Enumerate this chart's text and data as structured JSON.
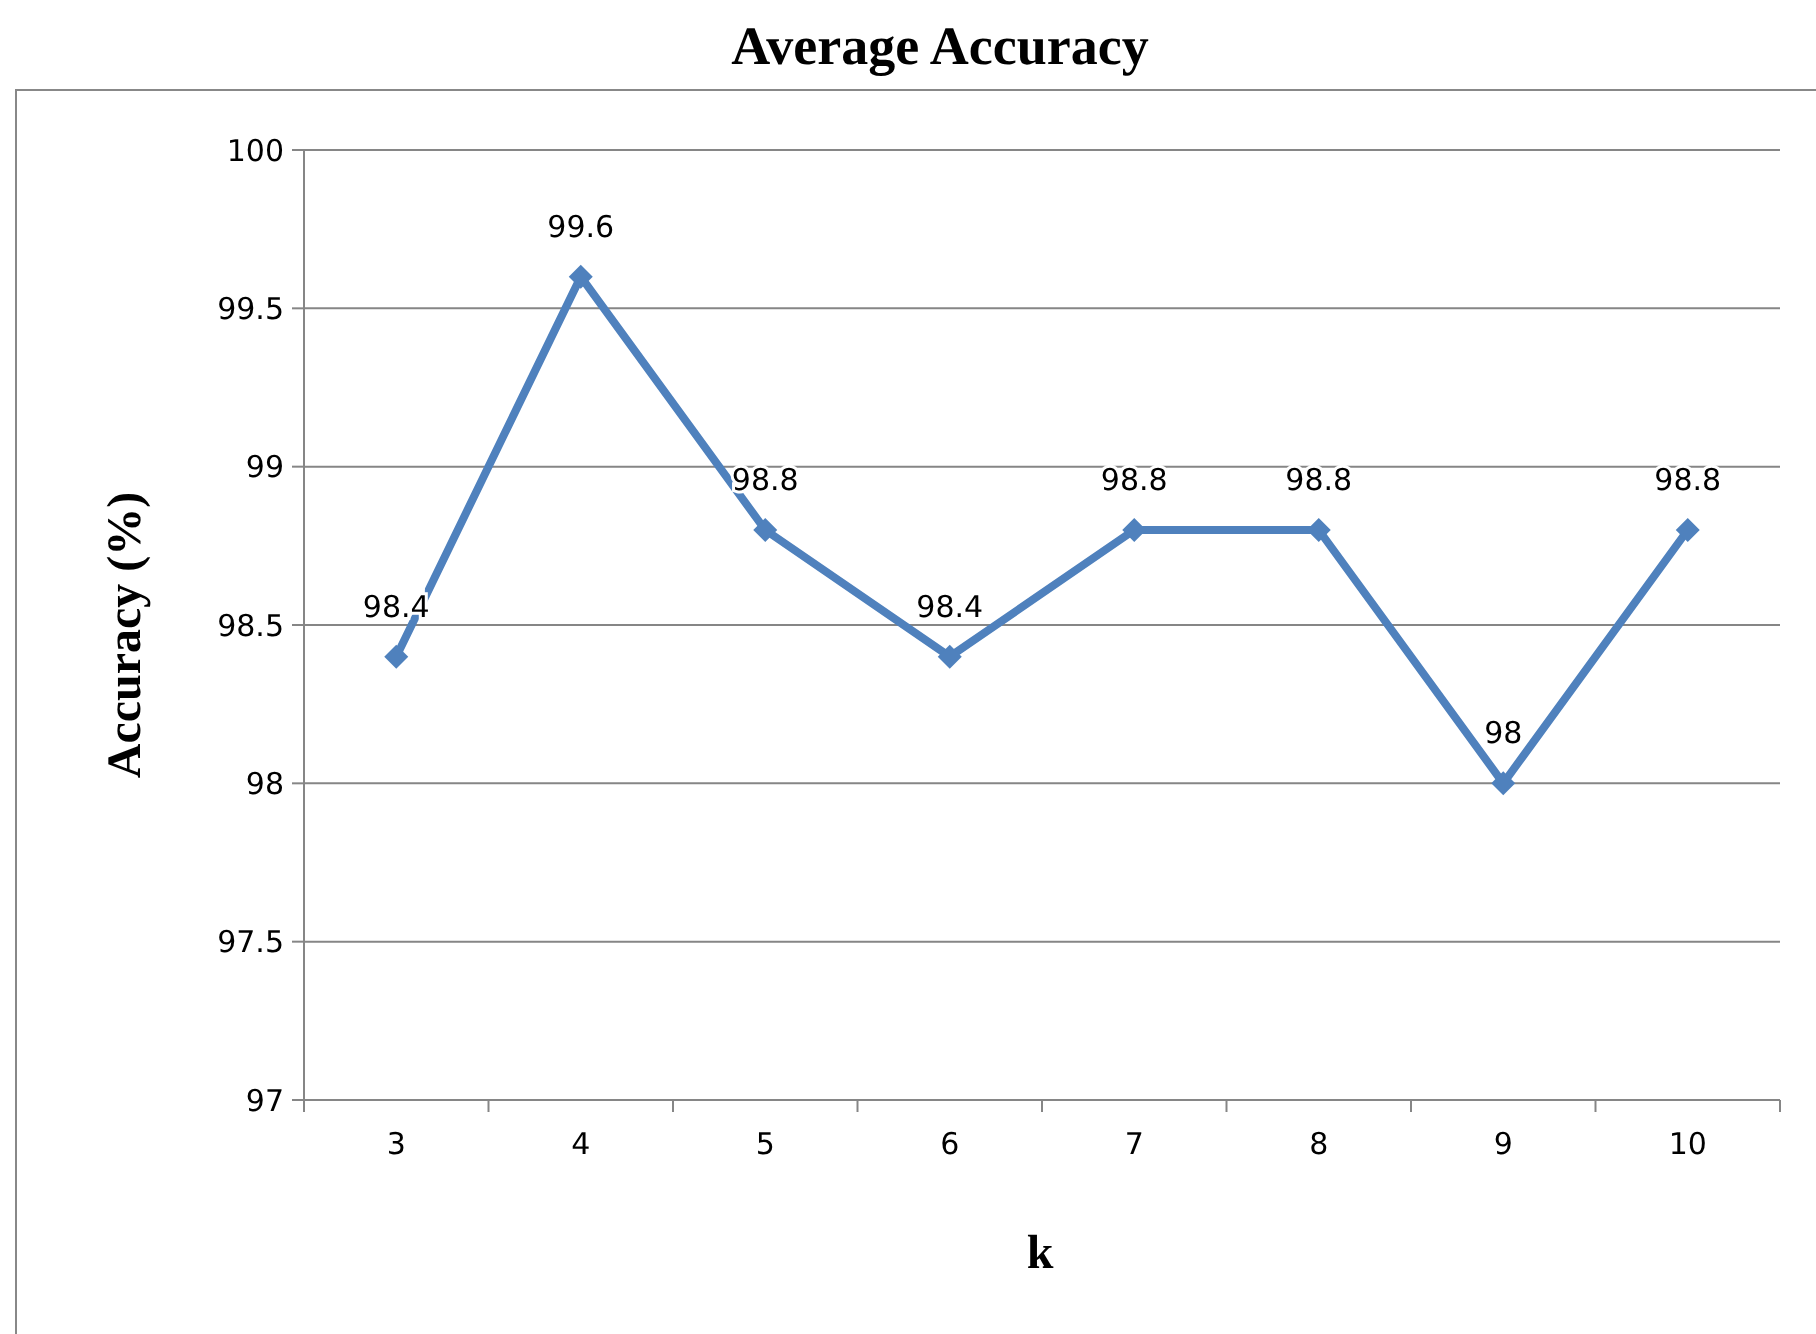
{
  "chart_data": {
    "type": "line",
    "title": "Average Accuracy",
    "xlabel": "k",
    "ylabel": "Accuracy (%)",
    "categories": [
      "3",
      "4",
      "5",
      "6",
      "7",
      "8",
      "9",
      "10"
    ],
    "series": [
      {
        "color": "#4f81bd",
        "values": [
          98.4,
          99.6,
          98.8,
          98.4,
          98.8,
          98.8,
          98,
          98.8
        ]
      }
    ],
    "ylim": [
      97,
      100
    ],
    "yticks": [
      97,
      97.5,
      98,
      98.5,
      99,
      99.5,
      100
    ],
    "grid": "y",
    "marker": "diamond",
    "line_style": "solid",
    "data_labels": true
  }
}
